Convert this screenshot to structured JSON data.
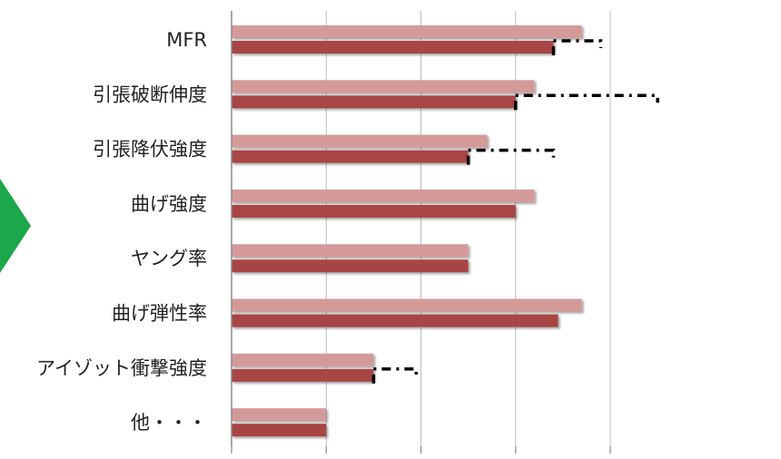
{
  "chart_data": {
    "type": "bar",
    "orientation": "horizontal",
    "categories": [
      "MFR",
      "引張破断伸度",
      "引張降伏強度",
      "曲げ強度",
      "ヤング率",
      "曲げ弾性率",
      "アイゾット衝撃強度",
      "他・・・"
    ],
    "series": [
      {
        "values": [
          3.7,
          3.2,
          2.7,
          3.2,
          2.5,
          3.7,
          1.5,
          1.0
        ],
        "color": "#d49a9a"
      },
      {
        "values": [
          3.4,
          3.0,
          2.5,
          3.0,
          2.5,
          3.45,
          1.5,
          1.0
        ],
        "color": "#a84444"
      }
    ],
    "error_extent": [
      {
        "category": "MFR",
        "from": 3.4,
        "to": 3.9
      },
      {
        "category": "引張破断伸度",
        "from": 3.0,
        "to": 4.5
      },
      {
        "category": "引張降伏強度",
        "from": 2.5,
        "to": 3.4
      },
      {
        "category": "アイゾット衝撃強度",
        "from": 1.5,
        "to": 1.95
      }
    ],
    "xlim": [
      0,
      4
    ],
    "grid": true,
    "legend": "none",
    "decor_arrow_color": "#1aa84a"
  }
}
